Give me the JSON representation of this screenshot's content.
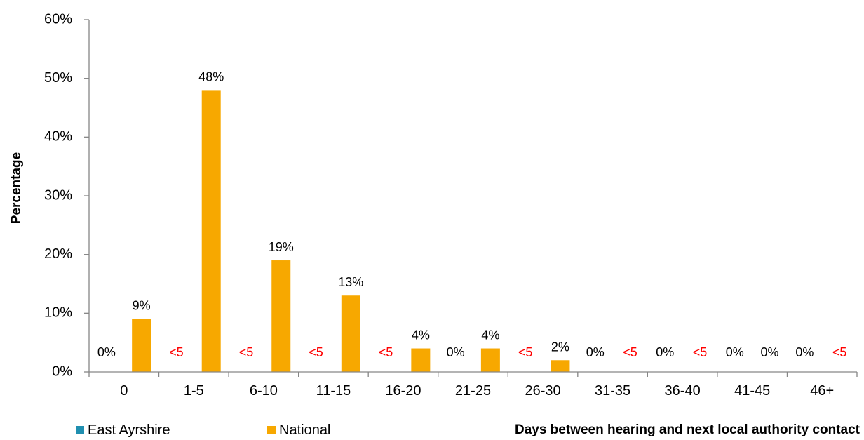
{
  "chart_data": {
    "type": "bar",
    "categories": [
      "0",
      "1-5",
      "6-10",
      "11-15",
      "16-20",
      "21-25",
      "26-30",
      "31-35",
      "36-40",
      "41-45",
      "46+"
    ],
    "series": [
      {
        "name": "East Ayrshire",
        "color": "#1f8fb0",
        "values": [
          0,
          null,
          null,
          null,
          null,
          0,
          null,
          0,
          0,
          0,
          0
        ],
        "labels": [
          "0%",
          "<5",
          "<5",
          "<5",
          "<5",
          "0%",
          "<5",
          "0%",
          "0%",
          "0%",
          "0%"
        ]
      },
      {
        "name": "National",
        "color": "#f7a800",
        "values": [
          9,
          48,
          19,
          13,
          4,
          4,
          2,
          0,
          0,
          0,
          0
        ],
        "labels": [
          "9%",
          "48%",
          "19%",
          "13%",
          "4%",
          "4%",
          "2%",
          "<5",
          "<5",
          "0%",
          "<5"
        ]
      }
    ],
    "ylabel": "Percentage",
    "xlabel": "Days between hearing and next local authority contact",
    "ylim": [
      0,
      60
    ],
    "yticks": [
      "0%",
      "10%",
      "20%",
      "30%",
      "40%",
      "50%",
      "60%"
    ],
    "suppressed_label_color": "#ff0000",
    "grid": false,
    "legend_position": "bottom-left"
  }
}
